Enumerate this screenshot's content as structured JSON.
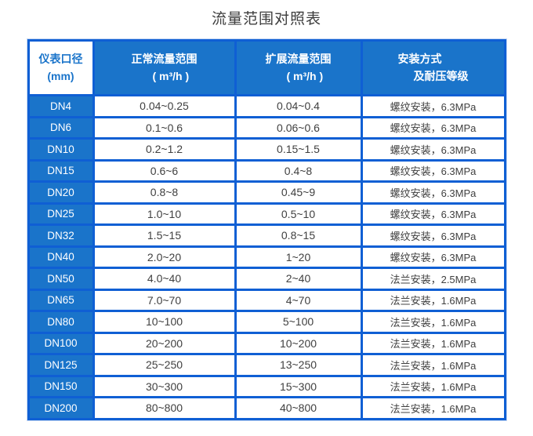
{
  "title": "流量范围对照表",
  "colors": {
    "grid_border_blue": "#0f5fd4",
    "header_fill_blue": "#1a74ca",
    "col1_separator_blue": "#5592dc",
    "outer_halo_blue": "#c3d6f2",
    "data_text": "#404040",
    "title_text": "#3d3d3d"
  },
  "table": {
    "columns": [
      {
        "line1": "仪表口径",
        "line2": "(mm)"
      },
      {
        "line1": "正常流量范围",
        "line2": "( m³/h )"
      },
      {
        "line1": "扩展流量范围",
        "line2": "( m³/h )"
      },
      {
        "line1": "安装方式",
        "line2": "及耐压等级"
      }
    ],
    "rows": [
      {
        "dn": "DN4",
        "normal": "0.04~0.25",
        "extended": "0.04~0.4",
        "install": "螺纹安装，6.3MPa"
      },
      {
        "dn": "DN6",
        "normal": "0.1~0.6",
        "extended": "0.06~0.6",
        "install": "螺纹安装，6.3MPa"
      },
      {
        "dn": "DN10",
        "normal": "0.2~1.2",
        "extended": "0.15~1.5",
        "install": "螺纹安装，6.3MPa"
      },
      {
        "dn": "DN15",
        "normal": "0.6~6",
        "extended": "0.4~8",
        "install": "螺纹安装，6.3MPa"
      },
      {
        "dn": "DN20",
        "normal": "0.8~8",
        "extended": "0.45~9",
        "install": "螺纹安装，6.3MPa"
      },
      {
        "dn": "DN25",
        "normal": "1.0~10",
        "extended": "0.5~10",
        "install": "螺纹安装，6.3MPa"
      },
      {
        "dn": "DN32",
        "normal": "1.5~15",
        "extended": "0.8~15",
        "install": "螺纹安装，6.3MPa"
      },
      {
        "dn": "DN40",
        "normal": "2.0~20",
        "extended": "1~20",
        "install": "螺纹安装，6.3MPa"
      },
      {
        "dn": "DN50",
        "normal": "4.0~40",
        "extended": "2~40",
        "install": "法兰安装，2.5MPa"
      },
      {
        "dn": "DN65",
        "normal": "7.0~70",
        "extended": "4~70",
        "install": "法兰安装，1.6MPa"
      },
      {
        "dn": "DN80",
        "normal": "10~100",
        "extended": "5~100",
        "install": "法兰安装，1.6MPa"
      },
      {
        "dn": "DN100",
        "normal": "20~200",
        "extended": "10~200",
        "install": "法兰安装，1.6MPa"
      },
      {
        "dn": "DN125",
        "normal": "25~250",
        "extended": "13~250",
        "install": "法兰安装，1.6MPa"
      },
      {
        "dn": "DN150",
        "normal": "30~300",
        "extended": "15~300",
        "install": "法兰安装，1.6MPa"
      },
      {
        "dn": "DN200",
        "normal": "80~800",
        "extended": "40~800",
        "install": "法兰安装，1.6MPa"
      }
    ]
  }
}
